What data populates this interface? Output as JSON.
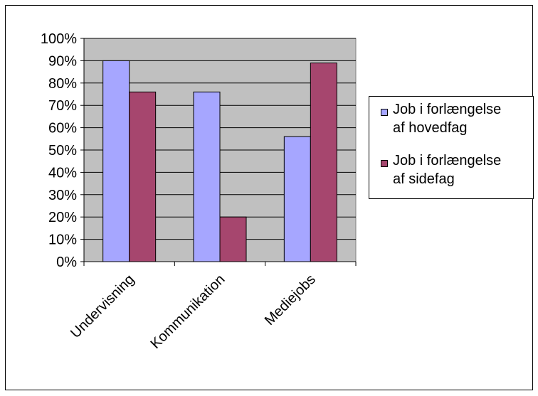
{
  "chart_data": {
    "type": "bar",
    "title": "",
    "xlabel": "",
    "ylabel": "",
    "categories": [
      "Undervisning",
      "Kommunikation",
      "Mediejobs"
    ],
    "series": [
      {
        "name": "Job i forlængelse af hovedfag",
        "values": [
          90,
          76,
          56
        ],
        "color": "#a6a6ff"
      },
      {
        "name": "Job i forlængelse af sidefag",
        "values": [
          76,
          20,
          89
        ],
        "color": "#a6466e"
      }
    ],
    "ylim": [
      0,
      100
    ],
    "yticks": [
      "0%",
      "10%",
      "20%",
      "30%",
      "40%",
      "50%",
      "60%",
      "70%",
      "80%",
      "90%",
      "100%"
    ],
    "grid": true,
    "legend_position": "right",
    "plot_background": "#c0c0c0",
    "legend": {
      "items": [
        {
          "line1": "Job i forlængelse",
          "line2": "af hovedfag"
        },
        {
          "line1": "Job i forlængelse",
          "line2": "af sidefag"
        }
      ]
    }
  }
}
